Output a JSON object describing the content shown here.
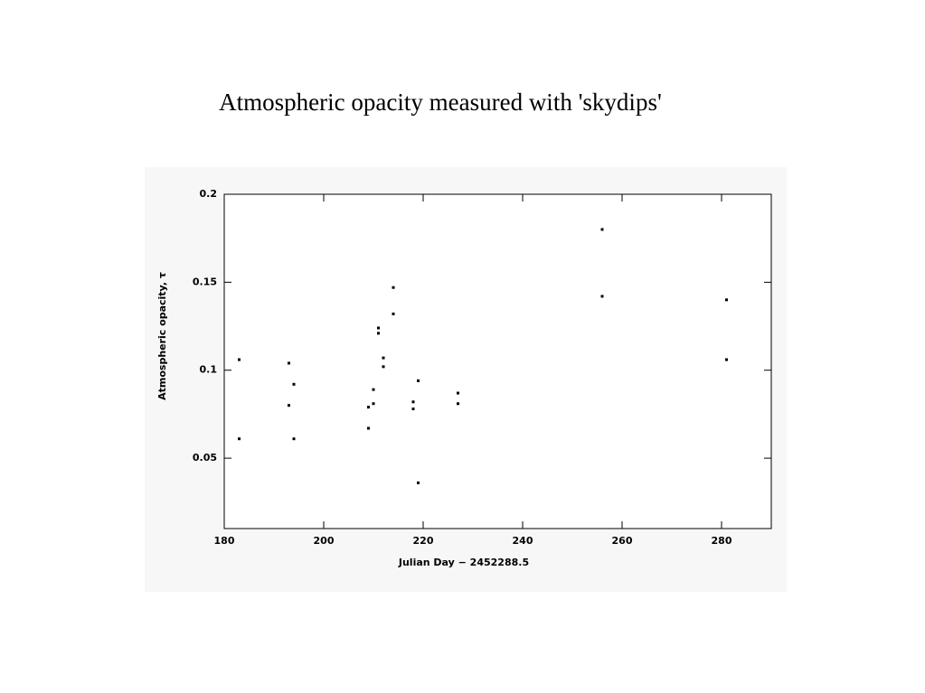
{
  "chart_data": {
    "type": "scatter",
    "title": "Atmospheric opacity measured with 'skydips'",
    "x_label": "Julian Day − 2452288.5",
    "y_label": "Atmospheric opacity, τ",
    "x": [
      183,
      183,
      193,
      193,
      194,
      194,
      209,
      209,
      210,
      210,
      211,
      211,
      212,
      212,
      214,
      214,
      218,
      218,
      219,
      219,
      227,
      227,
      256,
      256,
      281,
      281
    ],
    "values": [
      0.106,
      0.061,
      0.104,
      0.08,
      0.092,
      0.061,
      0.067,
      0.079,
      0.089,
      0.081,
      0.124,
      0.121,
      0.107,
      0.102,
      0.147,
      0.132,
      0.082,
      0.078,
      0.094,
      0.036,
      0.087,
      0.081,
      0.18,
      0.142,
      0.14,
      0.106
    ],
    "color": "#000000",
    "xlim": [
      180,
      290
    ],
    "xticks": [
      180,
      200,
      220,
      240,
      260,
      280
    ],
    "ylim": [
      0.01,
      0.2
    ],
    "yticks": [
      0.05,
      0.1,
      0.15,
      0.2
    ]
  }
}
